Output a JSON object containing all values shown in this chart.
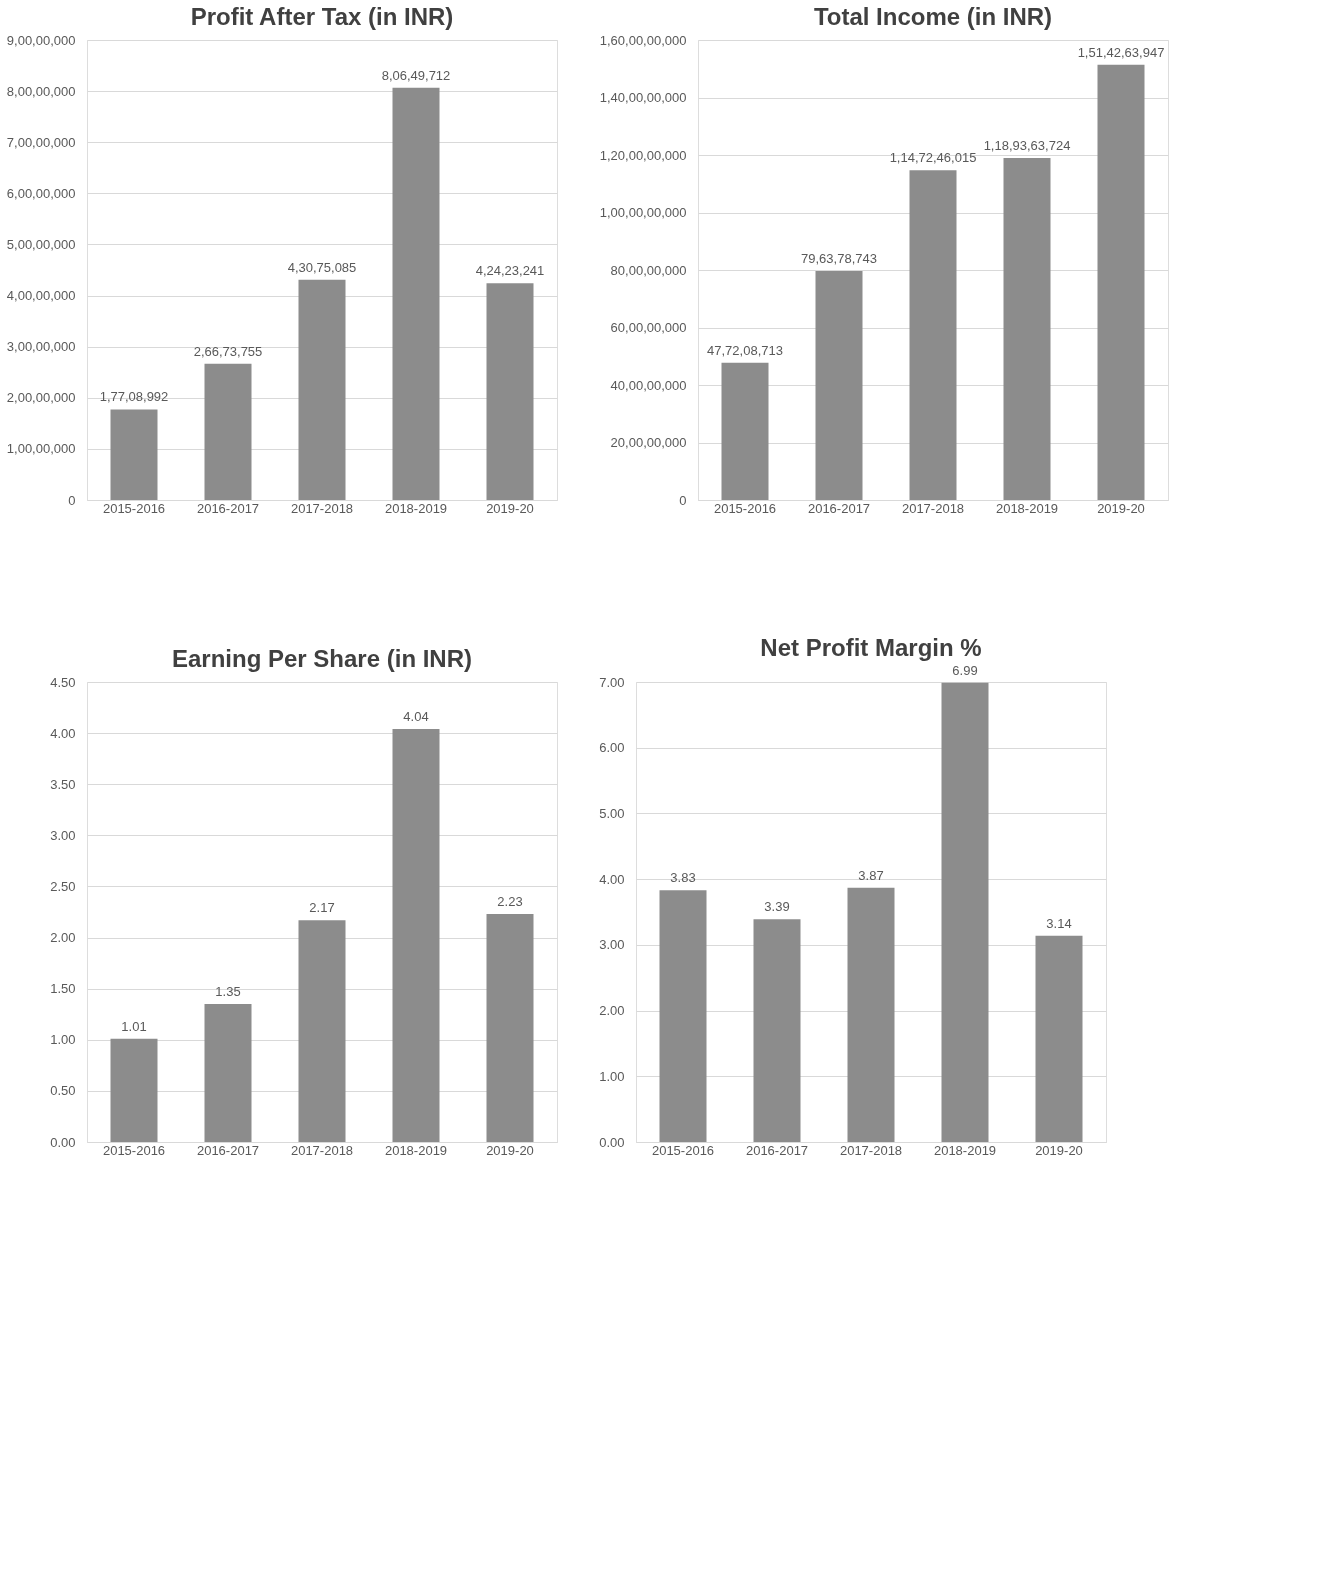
{
  "chart_data": [
    {
      "type": "bar",
      "title": "Profit After Tax (in INR)",
      "categories": [
        "2015-2016",
        "2016-2017",
        "2017-2018",
        "2018-2019",
        "2019-20"
      ],
      "values": [
        17708992,
        26673755,
        43075085,
        80649712,
        42423241
      ],
      "value_labels": [
        "1,77,08,992",
        "2,66,73,755",
        "4,30,75,085",
        "8,06,49,712",
        "4,24,23,241"
      ],
      "color": "#8c8c8c",
      "ylim": [
        0,
        90000000
      ],
      "yticks": [
        0,
        {
          "value": 10000000,
          "label": "1,00,00,000"
        },
        {
          "value": 20000000,
          "label": "2,00,00,000"
        },
        {
          "value": 30000000,
          "label": "3,00,00,000"
        },
        {
          "value": 40000000,
          "label": "4,00,00,000"
        },
        {
          "value": 50000000,
          "label": "5,00,00,000"
        },
        {
          "value": 60000000,
          "label": "6,00,00,000"
        },
        {
          "value": 70000000,
          "label": "7,00,00,000"
        },
        {
          "value": 80000000,
          "label": "8,00,00,000"
        },
        {
          "value": 90000000,
          "label": "9,00,00,000"
        }
      ],
      "grid": "y"
    },
    {
      "type": "bar",
      "title": "Total Income (in INR)",
      "categories": [
        "2015-2016",
        "2016-2017",
        "2017-2018",
        "2018-2019",
        "2019-20"
      ],
      "values": [
        477208713,
        796378743,
        1147246015,
        1189363724,
        1514263947
      ],
      "value_labels": [
        "47,72,08,713",
        "79,63,78,743",
        "1,14,72,46,015",
        "1,18,93,63,724",
        "1,51,42,63,947"
      ],
      "color": "#8c8c8c",
      "ylim": [
        0,
        1600000000
      ],
      "yticks": [
        0,
        {
          "value": 200000000,
          "label": "20,00,00,000"
        },
        {
          "value": 400000000,
          "label": "40,00,00,000"
        },
        {
          "value": 600000000,
          "label": "60,00,00,000"
        },
        {
          "value": 800000000,
          "label": "80,00,00,000"
        },
        {
          "value": 1000000000,
          "label": "1,00,00,00,000"
        },
        {
          "value": 1200000000,
          "label": "1,20,00,00,000"
        },
        {
          "value": 1400000000,
          "label": "1,40,00,00,000"
        },
        {
          "value": 1600000000,
          "label": "1,60,00,00,000"
        }
      ],
      "grid": "y"
    },
    {
      "type": "bar",
      "title": "Earning Per Share (in INR)",
      "categories": [
        "2015-2016",
        "2016-2017",
        "2017-2018",
        "2018-2019",
        "2019-20"
      ],
      "values": [
        1.01,
        1.35,
        2.17,
        4.04,
        2.23
      ],
      "data_labels": true,
      "color": "#8c8c8c",
      "ylim": [
        0,
        4.5
      ],
      "yticks": [
        {
          "value": 0,
          "label": "0.00"
        },
        {
          "value": 0.5,
          "label": "0.50"
        },
        {
          "value": 1,
          "label": "1.00"
        },
        {
          "value": 1.5,
          "label": "1.50"
        },
        {
          "value": 2,
          "label": "2.00"
        },
        {
          "value": 2.5,
          "label": "2.50"
        },
        {
          "value": 3,
          "label": "3.00"
        },
        {
          "value": 3.5,
          "label": "3.50"
        },
        {
          "value": 4,
          "label": "4.00"
        },
        {
          "value": 4.5,
          "label": "4.50"
        }
      ],
      "grid": "y"
    },
    {
      "type": "bar",
      "title": "Net Profit Margin %",
      "categories": [
        "2015-2016",
        "2016-2017",
        "2017-2018",
        "2018-2019",
        "2019-20"
      ],
      "values": [
        3.83,
        3.39,
        3.87,
        6.99,
        3.14
      ],
      "data_labels": true,
      "color": "#8c8c8c",
      "ylim": [
        0,
        7
      ],
      "yticks": [
        {
          "value": 0,
          "label": "0.00"
        },
        {
          "value": 1,
          "label": "1.00"
        },
        {
          "value": 2,
          "label": "2.00"
        },
        {
          "value": 3,
          "label": "3.00"
        },
        {
          "value": 4,
          "label": "4.00"
        },
        {
          "value": 5,
          "label": "5.00"
        },
        {
          "value": 6,
          "label": "6.00"
        },
        {
          "value": 7,
          "label": "7.00"
        }
      ],
      "grid": "y"
    }
  ]
}
